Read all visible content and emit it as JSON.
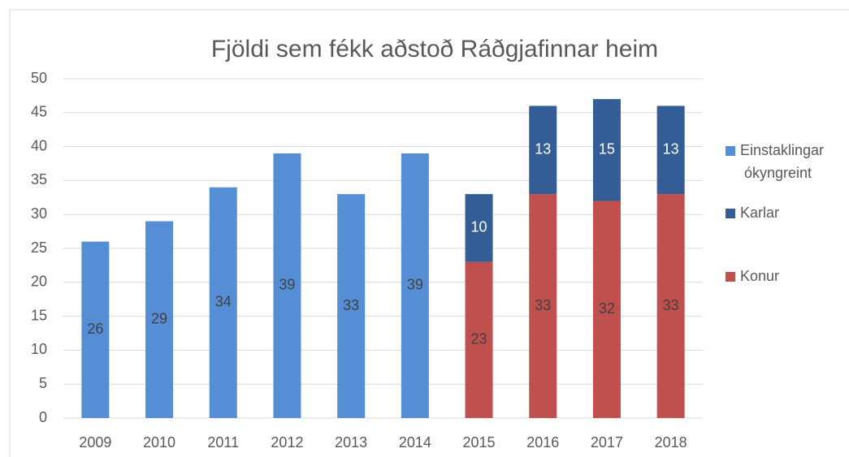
{
  "chart_data": {
    "type": "stacked_bar",
    "title": "Fjöldi sem fékk aðstoð Ráðgjafinnar heim",
    "categories": [
      "2009",
      "2010",
      "2011",
      "2012",
      "2013",
      "2014",
      "2015",
      "2016",
      "2017",
      "2018"
    ],
    "series": [
      {
        "name": "Einstaklingar ókyngreint",
        "color": "#558ed5",
        "label_color": "#404040",
        "values": [
          26,
          29,
          34,
          39,
          33,
          39,
          null,
          null,
          null,
          null
        ]
      },
      {
        "name": "Karlar",
        "color": "#335d94",
        "label_color": "#ffffff",
        "values": [
          null,
          null,
          null,
          null,
          null,
          null,
          10,
          13,
          15,
          13
        ]
      },
      {
        "name": "Konur",
        "color": "#c0504d",
        "label_color": "#404040",
        "values": [
          null,
          null,
          null,
          null,
          null,
          null,
          23,
          33,
          32,
          33
        ]
      }
    ],
    "ylim": [
      0,
      50
    ],
    "yticks": [
      0,
      5,
      10,
      15,
      20,
      25,
      30,
      35,
      40,
      45,
      50
    ],
    "grid": true,
    "legend": "right"
  }
}
